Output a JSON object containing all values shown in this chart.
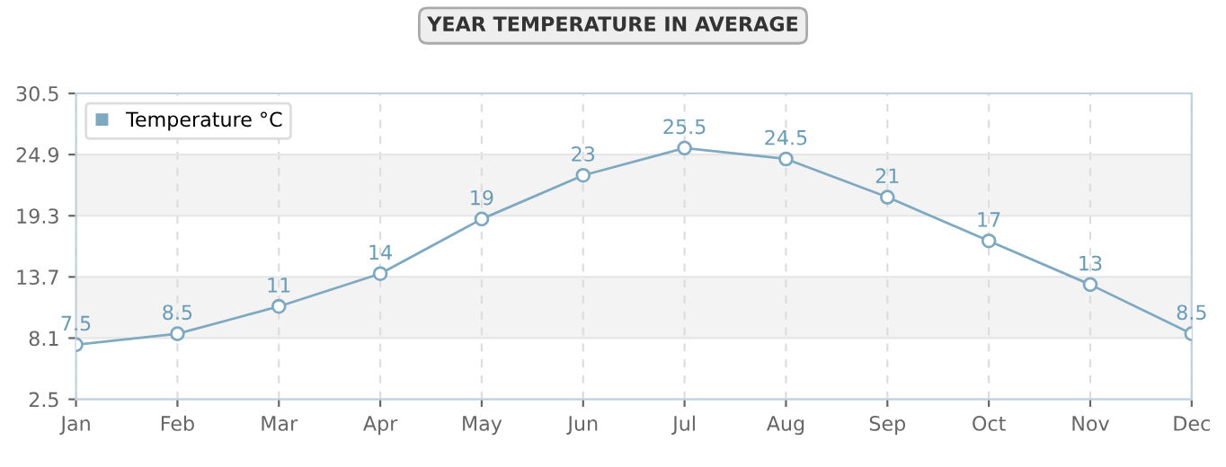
{
  "chart_data": {
    "type": "line",
    "title": "YEAR TEMPERATURE IN AVERAGE",
    "categories": [
      "Jan",
      "Feb",
      "Mar",
      "Apr",
      "May",
      "Jun",
      "Jul",
      "Aug",
      "Sep",
      "Oct",
      "Nov",
      "Dec"
    ],
    "series": [
      {
        "name": "Temperature °C",
        "color": "#7fa9c0",
        "values": [
          7.5,
          8.5,
          11,
          14,
          19,
          23,
          25.5,
          24.5,
          21,
          17,
          13,
          8.5
        ]
      }
    ],
    "ylim": [
      2.5,
      30.5
    ],
    "yticks": [
      2.5,
      8.1,
      13.7,
      19.3,
      24.9,
      30.5
    ],
    "data_labels": true,
    "grid": true,
    "legend": "top left",
    "marker": "circle",
    "line_style": "solid"
  }
}
